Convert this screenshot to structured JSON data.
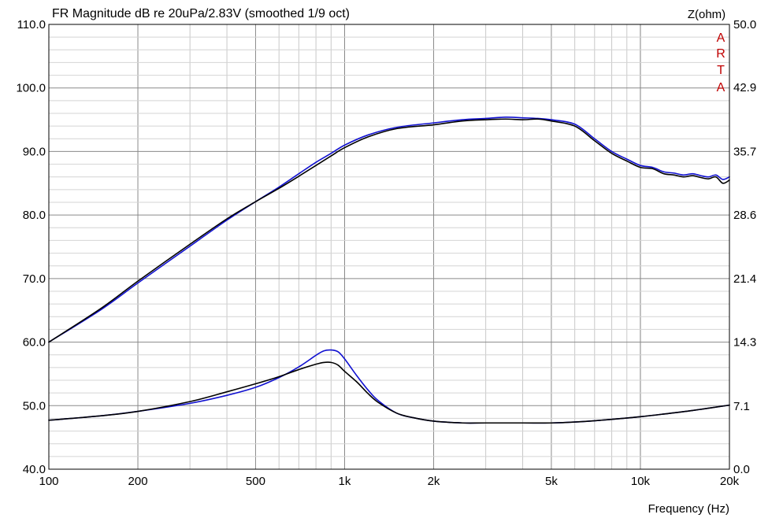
{
  "chart_data": {
    "type": "line",
    "title": "FR Magnitude dB re 20uPa/2.83V (smoothed 1/9 oct)",
    "xlabel": "Frequency (Hz)",
    "ylabel_right": "Z(ohm)",
    "brand_letters": [
      "A",
      "R",
      "T",
      "A"
    ],
    "brand_color": "#c00000",
    "x_scale": "log",
    "xlim": [
      100,
      20000
    ],
    "ylim": [
      40,
      110
    ],
    "ylim_right": [
      0,
      50
    ],
    "grid": true,
    "x_ticks": [
      {
        "value": 100,
        "label": "100"
      },
      {
        "value": 200,
        "label": "200"
      },
      {
        "value": 500,
        "label": "500"
      },
      {
        "value": 1000,
        "label": "1k"
      },
      {
        "value": 2000,
        "label": "2k"
      },
      {
        "value": 5000,
        "label": "5k"
      },
      {
        "value": 10000,
        "label": "10k"
      },
      {
        "value": 20000,
        "label": "20k"
      }
    ],
    "y_ticks": [
      {
        "value": 40,
        "label": "40.0"
      },
      {
        "value": 50,
        "label": "50.0"
      },
      {
        "value": 60,
        "label": "60.0"
      },
      {
        "value": 70,
        "label": "70.0"
      },
      {
        "value": 80,
        "label": "80.0"
      },
      {
        "value": 90,
        "label": "90.0"
      },
      {
        "value": 100,
        "label": "100.0"
      },
      {
        "value": 110,
        "label": "110.0"
      }
    ],
    "y_ticks_right": [
      {
        "value": 0,
        "label": "0.0"
      },
      {
        "value": 7.1,
        "label": "7.1"
      },
      {
        "value": 14.3,
        "label": "14.3"
      },
      {
        "value": 21.4,
        "label": "21.4"
      },
      {
        "value": 28.6,
        "label": "28.6"
      },
      {
        "value": 35.7,
        "label": "35.7"
      },
      {
        "value": 42.9,
        "label": "42.9"
      },
      {
        "value": 50.0,
        "label": "50.0"
      }
    ],
    "series": [
      {
        "color": "#1010d0",
        "axis": "left",
        "x": [
          100,
          150,
          200,
          300,
          400,
          500,
          600,
          700,
          800,
          900,
          1000,
          1200,
          1500,
          2000,
          2500,
          3000,
          3500,
          4000,
          4500,
          5000,
          6000,
          7000,
          8000,
          9000,
          10000,
          11000,
          12000,
          13000,
          14000,
          15000,
          16000,
          17000,
          18000,
          19000,
          20000
        ],
        "y": [
          60.0,
          65.1,
          69.3,
          75.1,
          79.2,
          82.1,
          84.4,
          86.5,
          88.3,
          89.7,
          91.0,
          92.6,
          93.8,
          94.5,
          95.0,
          95.2,
          95.4,
          95.3,
          95.2,
          95.0,
          94.3,
          92.0,
          90.0,
          88.8,
          87.8,
          87.5,
          86.8,
          86.6,
          86.3,
          86.5,
          86.2,
          86.0,
          86.3,
          85.6,
          86.0
        ]
      },
      {
        "color": "#000000",
        "axis": "left",
        "x": [
          100,
          150,
          200,
          300,
          400,
          500,
          600,
          700,
          800,
          900,
          1000,
          1200,
          1500,
          2000,
          2500,
          3000,
          3500,
          4000,
          4500,
          5000,
          6000,
          7000,
          8000,
          9000,
          10000,
          11000,
          12000,
          13000,
          14000,
          15000,
          16000,
          17000,
          18000,
          19000,
          20000
        ],
        "y": [
          60.0,
          65.3,
          69.6,
          75.4,
          79.4,
          82.1,
          84.2,
          86.1,
          87.8,
          89.3,
          90.6,
          92.3,
          93.6,
          94.2,
          94.8,
          95.0,
          95.1,
          95.0,
          95.1,
          94.8,
          94.0,
          91.7,
          89.7,
          88.5,
          87.5,
          87.3,
          86.5,
          86.3,
          86.0,
          86.2,
          85.9,
          85.7,
          86.0,
          85.0,
          85.5
        ]
      },
      {
        "color": "#1010d0",
        "axis": "right",
        "x": [
          100,
          150,
          200,
          300,
          400,
          500,
          600,
          700,
          800,
          850,
          900,
          950,
          1000,
          1100,
          1200,
          1300,
          1500,
          1700,
          2000,
          2500,
          3000,
          4000,
          5000,
          6000,
          8000,
          10000,
          12000,
          15000,
          20000
        ],
        "y": [
          5.5,
          6.0,
          6.5,
          7.4,
          8.3,
          9.2,
          10.3,
          11.5,
          12.8,
          13.3,
          13.4,
          13.2,
          12.4,
          10.5,
          8.9,
          7.7,
          6.3,
          5.8,
          5.4,
          5.2,
          5.2,
          5.2,
          5.2,
          5.3,
          5.6,
          5.9,
          6.2,
          6.6,
          7.2
        ]
      },
      {
        "color": "#000000",
        "axis": "right",
        "x": [
          100,
          150,
          200,
          300,
          400,
          500,
          600,
          700,
          800,
          850,
          900,
          950,
          1000,
          1100,
          1200,
          1300,
          1500,
          1700,
          2000,
          2500,
          3000,
          4000,
          5000,
          6000,
          8000,
          10000,
          12000,
          15000,
          20000
        ],
        "y": [
          5.5,
          6.0,
          6.5,
          7.6,
          8.7,
          9.6,
          10.4,
          11.2,
          11.8,
          12.0,
          12.0,
          11.7,
          11.0,
          9.8,
          8.5,
          7.5,
          6.3,
          5.8,
          5.4,
          5.2,
          5.2,
          5.2,
          5.2,
          5.3,
          5.6,
          5.9,
          6.2,
          6.6,
          7.2
        ]
      }
    ]
  }
}
